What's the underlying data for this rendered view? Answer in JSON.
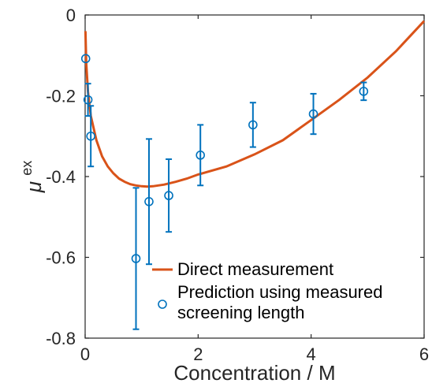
{
  "chart_data": {
    "type": "line",
    "xlabel": "Concentration / M",
    "ylabel_base": "μ",
    "ylabel_sup": "ex",
    "xlim": [
      0,
      6
    ],
    "ylim": [
      -0.8,
      0
    ],
    "xticks": [
      0,
      2,
      4,
      6
    ],
    "yticks": [
      0,
      -0.2,
      -0.4,
      -0.6,
      -0.8
    ],
    "xtick_labels": [
      "0",
      "2",
      "4",
      "6"
    ],
    "ytick_labels": [
      "0",
      "-0.2",
      "-0.4",
      "-0.6",
      "-0.8"
    ],
    "grid": false,
    "legend_position": "bottom-center",
    "series": [
      {
        "name": "Direct measurement",
        "kind": "line",
        "color": "#D95319",
        "x": [
          0.005,
          0.02,
          0.05,
          0.1,
          0.2,
          0.3,
          0.4,
          0.5,
          0.6,
          0.7,
          0.8,
          0.9,
          1.0,
          1.1,
          1.2,
          1.4,
          1.6,
          1.8,
          2.0,
          2.5,
          3.0,
          3.5,
          4.0,
          4.5,
          5.0,
          5.5,
          6.0
        ],
        "y": [
          -0.04,
          -0.12,
          -0.19,
          -0.25,
          -0.31,
          -0.35,
          -0.375,
          -0.392,
          -0.405,
          -0.413,
          -0.419,
          -0.422,
          -0.424,
          -0.425,
          -0.424,
          -0.42,
          -0.413,
          -0.405,
          -0.395,
          -0.375,
          -0.345,
          -0.31,
          -0.26,
          -0.21,
          -0.155,
          -0.09,
          -0.015
        ]
      },
      {
        "name": "Prediction using measured screening length",
        "kind": "errorbar",
        "color": "#0072BD",
        "points": [
          {
            "x": 0.01,
            "y": -0.108,
            "err": 0.0
          },
          {
            "x": 0.05,
            "y": -0.21,
            "err": 0.04
          },
          {
            "x": 0.1,
            "y": -0.3,
            "err": 0.075
          },
          {
            "x": 0.9,
            "y": -0.603,
            "err": 0.175
          },
          {
            "x": 1.13,
            "y": -0.462,
            "err": 0.155
          },
          {
            "x": 1.48,
            "y": -0.447,
            "err": 0.09
          },
          {
            "x": 2.04,
            "y": -0.347,
            "err": 0.075
          },
          {
            "x": 2.97,
            "y": -0.272,
            "err": 0.055
          },
          {
            "x": 4.04,
            "y": -0.245,
            "err": 0.05
          },
          {
            "x": 4.93,
            "y": -0.189,
            "err": 0.022
          }
        ]
      }
    ],
    "legend": {
      "line_label": "Direct measurement",
      "marker_label_line1": "Prediction using measured",
      "marker_label_line2": "screening length"
    }
  }
}
